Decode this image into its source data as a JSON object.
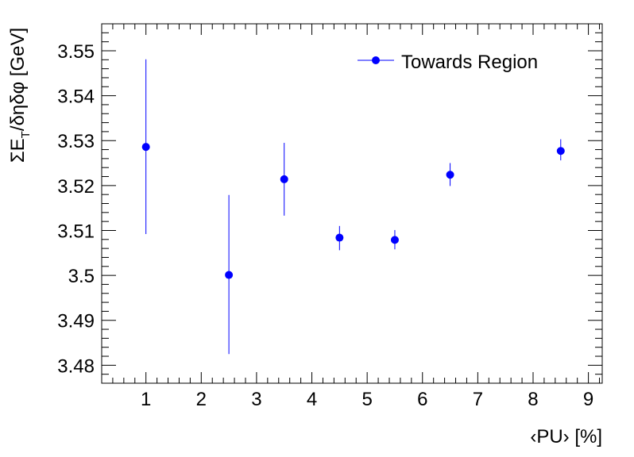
{
  "chart_data": {
    "type": "scatter",
    "title": "",
    "xlabel": "‹PU› [%]",
    "ylabel": "ΣE_T/δηδφ [GeV]",
    "xlim": [
      0.2,
      9.25
    ],
    "ylim": [
      3.476,
      3.556
    ],
    "x_ticks": [
      1,
      2,
      3,
      4,
      5,
      6,
      7,
      8,
      9
    ],
    "x_tick_labels": [
      "1",
      "2",
      "3",
      "4",
      "5",
      "6",
      "7",
      "8",
      "9"
    ],
    "y_ticks": [
      3.48,
      3.49,
      3.5,
      3.51,
      3.52,
      3.53,
      3.54,
      3.55
    ],
    "y_tick_labels": [
      "3.48",
      "3.49",
      "3.5",
      "3.51",
      "3.52",
      "3.53",
      "3.54",
      "3.55"
    ],
    "grid": false,
    "legend_position": "top-right",
    "series": [
      {
        "name": "Towards Region",
        "color": "#0000ff",
        "marker": "circle",
        "points": [
          {
            "x": 1.0,
            "y": 3.5286,
            "err_low": 3.5092,
            "err_high": 3.5481
          },
          {
            "x": 2.5,
            "y": 3.5001,
            "err_low": 3.4825,
            "err_high": 3.5179
          },
          {
            "x": 3.5,
            "y": 3.5214,
            "err_low": 3.5133,
            "err_high": 3.5295
          },
          {
            "x": 4.5,
            "y": 3.5084,
            "err_low": 3.5056,
            "err_high": 3.511
          },
          {
            "x": 5.5,
            "y": 3.5079,
            "err_low": 3.5058,
            "err_high": 3.5101
          },
          {
            "x": 6.5,
            "y": 3.5224,
            "err_low": 3.5199,
            "err_high": 3.525
          },
          {
            "x": 8.5,
            "y": 3.5277,
            "err_low": 3.5256,
            "err_high": 3.5303
          }
        ]
      }
    ]
  }
}
